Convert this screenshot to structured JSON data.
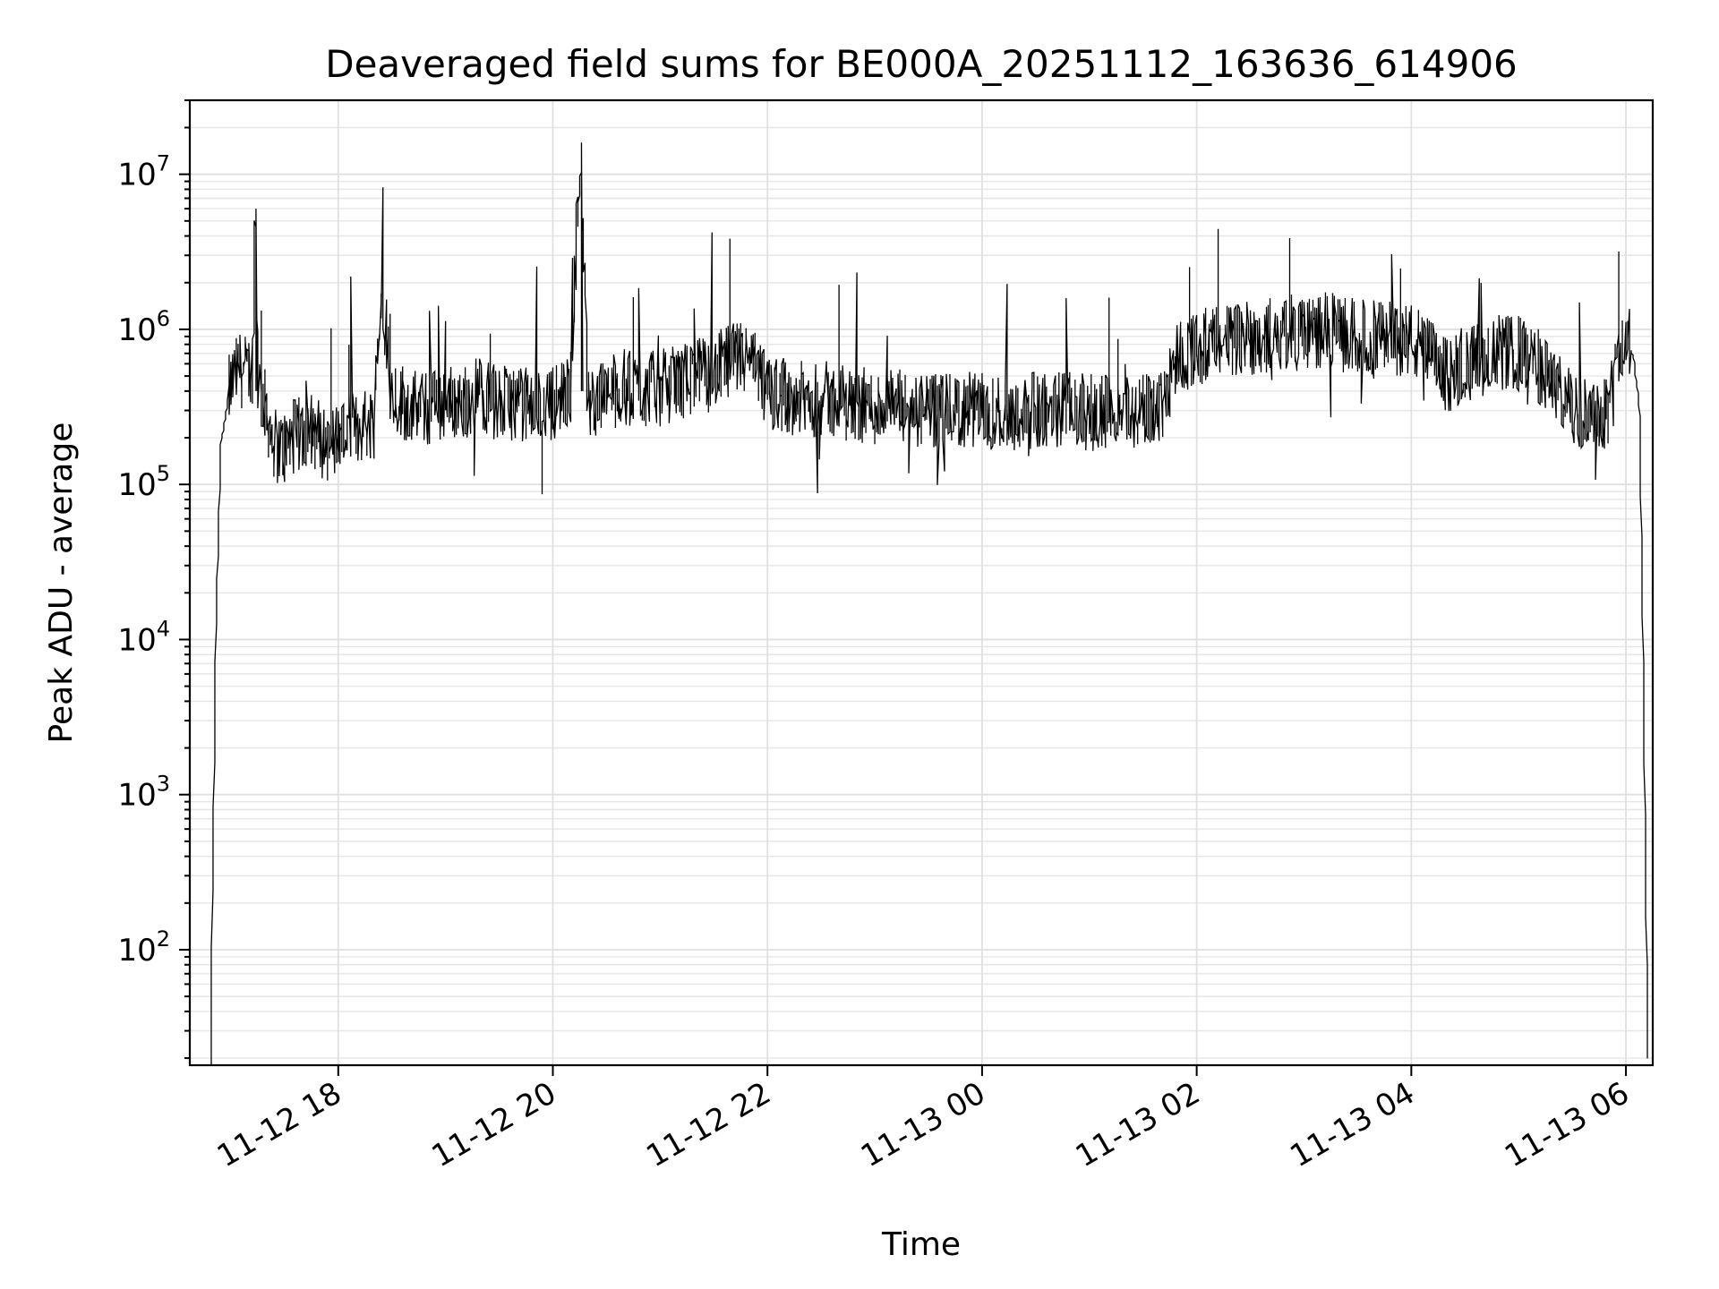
{
  "chart_data": {
    "type": "line",
    "title": "Deaveraged field sums for BE000A_20251112_163636_614906",
    "xlabel": "Time",
    "ylabel": "Peak ADU - average",
    "yscale": "log",
    "ylim": [
      18,
      30000000
    ],
    "xlim": [
      "2025-11-12 16:37",
      "2025-11-13 06:15"
    ],
    "grid": true,
    "line_color": "#000000",
    "grid_color": "#e0e0e0",
    "x_ticks": [
      {
        "label": "11-12 18",
        "t": "2025-11-12 18:00"
      },
      {
        "label": "11-12 20",
        "t": "2025-11-12 20:00"
      },
      {
        "label": "11-12 22",
        "t": "2025-11-12 22:00"
      },
      {
        "label": "11-13 00",
        "t": "2025-11-13 00:00"
      },
      {
        "label": "11-13 02",
        "t": "2025-11-13 02:00"
      },
      {
        "label": "11-13 04",
        "t": "2025-11-13 04:00"
      },
      {
        "label": "11-13 06",
        "t": "2025-11-13 06:00"
      }
    ],
    "y_ticks": [
      {
        "base": "10",
        "exp": "2",
        "value": 100
      },
      {
        "base": "10",
        "exp": "3",
        "value": 1000
      },
      {
        "base": "10",
        "exp": "4",
        "value": 10000
      },
      {
        "base": "10",
        "exp": "5",
        "value": 100000
      },
      {
        "base": "10",
        "exp": "6",
        "value": 1000000
      },
      {
        "base": "10",
        "exp": "7",
        "value": 10000000
      }
    ],
    "series": [
      {
        "x": [
          "2025-11-12 16:49",
          "2025-11-12 16:50",
          "2025-11-12 16:51",
          "2025-11-12 16:52",
          "2025-11-12 16:55",
          "2025-11-12 17:00",
          "2025-11-12 17:05",
          "2025-11-12 17:10",
          "2025-11-12 17:13",
          "2025-11-12 17:14",
          "2025-11-12 17:16",
          "2025-11-12 17:20",
          "2025-11-12 17:25",
          "2025-11-12 17:30",
          "2025-11-12 17:35",
          "2025-11-12 17:40",
          "2025-11-12 17:45",
          "2025-11-12 17:50",
          "2025-11-12 17:55",
          "2025-11-12 18:00",
          "2025-11-12 18:10",
          "2025-11-12 18:20",
          "2025-11-12 18:25",
          "2025-11-12 18:30",
          "2025-11-12 18:40",
          "2025-11-12 18:50",
          "2025-11-12 19:00",
          "2025-11-12 19:10",
          "2025-11-12 19:20",
          "2025-11-12 19:30",
          "2025-11-12 19:40",
          "2025-11-12 19:50",
          "2025-11-12 20:00",
          "2025-11-12 20:10",
          "2025-11-12 20:16",
          "2025-11-12 20:20",
          "2025-11-12 20:30",
          "2025-11-12 20:40",
          "2025-11-12 20:50",
          "2025-11-12 21:00",
          "2025-11-12 21:10",
          "2025-11-12 21:20",
          "2025-11-12 21:30",
          "2025-11-12 21:40",
          "2025-11-12 21:50",
          "2025-11-12 22:00",
          "2025-11-12 22:10",
          "2025-11-12 22:20",
          "2025-11-12 22:30",
          "2025-11-12 22:40",
          "2025-11-12 22:50",
          "2025-11-12 23:00",
          "2025-11-12 23:10",
          "2025-11-12 23:20",
          "2025-11-12 23:30",
          "2025-11-12 23:40",
          "2025-11-12 23:50",
          "2025-11-13 00:00",
          "2025-11-13 00:10",
          "2025-11-13 00:20",
          "2025-11-13 00:30",
          "2025-11-13 00:40",
          "2025-11-13 00:50",
          "2025-11-13 01:00",
          "2025-11-13 01:10",
          "2025-11-13 01:20",
          "2025-11-13 01:30",
          "2025-11-13 01:40",
          "2025-11-13 01:50",
          "2025-11-13 02:00",
          "2025-11-13 02:10",
          "2025-11-13 02:20",
          "2025-11-13 02:30",
          "2025-11-13 02:40",
          "2025-11-13 02:50",
          "2025-11-13 03:00",
          "2025-11-13 03:10",
          "2025-11-13 03:20",
          "2025-11-13 03:30",
          "2025-11-13 03:40",
          "2025-11-13 03:50",
          "2025-11-13 04:00",
          "2025-11-13 04:10",
          "2025-11-13 04:20",
          "2025-11-13 04:30",
          "2025-11-13 04:40",
          "2025-11-13 04:50",
          "2025-11-13 05:00",
          "2025-11-13 05:10",
          "2025-11-13 05:20",
          "2025-11-13 05:30",
          "2025-11-13 05:40",
          "2025-11-13 05:50",
          "2025-11-13 06:00",
          "2025-11-13 06:05",
          "2025-11-13 06:08",
          "2025-11-13 06:10",
          "2025-11-13 06:12",
          "2025-11-13 06:13"
        ],
        "y": [
          18,
          220,
          1300,
          11000,
          190000,
          420000,
          560000,
          520000,
          600000,
          6000000,
          450000,
          300000,
          180000,
          170000,
          200000,
          210000,
          230000,
          200000,
          180000,
          200000,
          230000,
          260000,
          2000000,
          400000,
          320000,
          300000,
          350000,
          330000,
          400000,
          320000,
          350000,
          300000,
          340000,
          380000,
          16000000,
          350000,
          380000,
          420000,
          400000,
          420000,
          450000,
          500000,
          520000,
          620000,
          650000,
          400000,
          380000,
          350000,
          360000,
          340000,
          330000,
          310000,
          320000,
          300000,
          290000,
          290000,
          300000,
          300000,
          290000,
          290000,
          300000,
          310000,
          300000,
          290000,
          290000,
          300000,
          290000,
          320000,
          700000,
          750000,
          800000,
          850000,
          900000,
          900000,
          950000,
          950000,
          1000000,
          950000,
          900000,
          880000,
          900000,
          850000,
          700000,
          500000,
          600000,
          650000,
          700000,
          700000,
          600000,
          450000,
          300000,
          300000,
          300000,
          900000,
          650000,
          300000,
          10000,
          130,
          18
        ]
      }
    ]
  }
}
